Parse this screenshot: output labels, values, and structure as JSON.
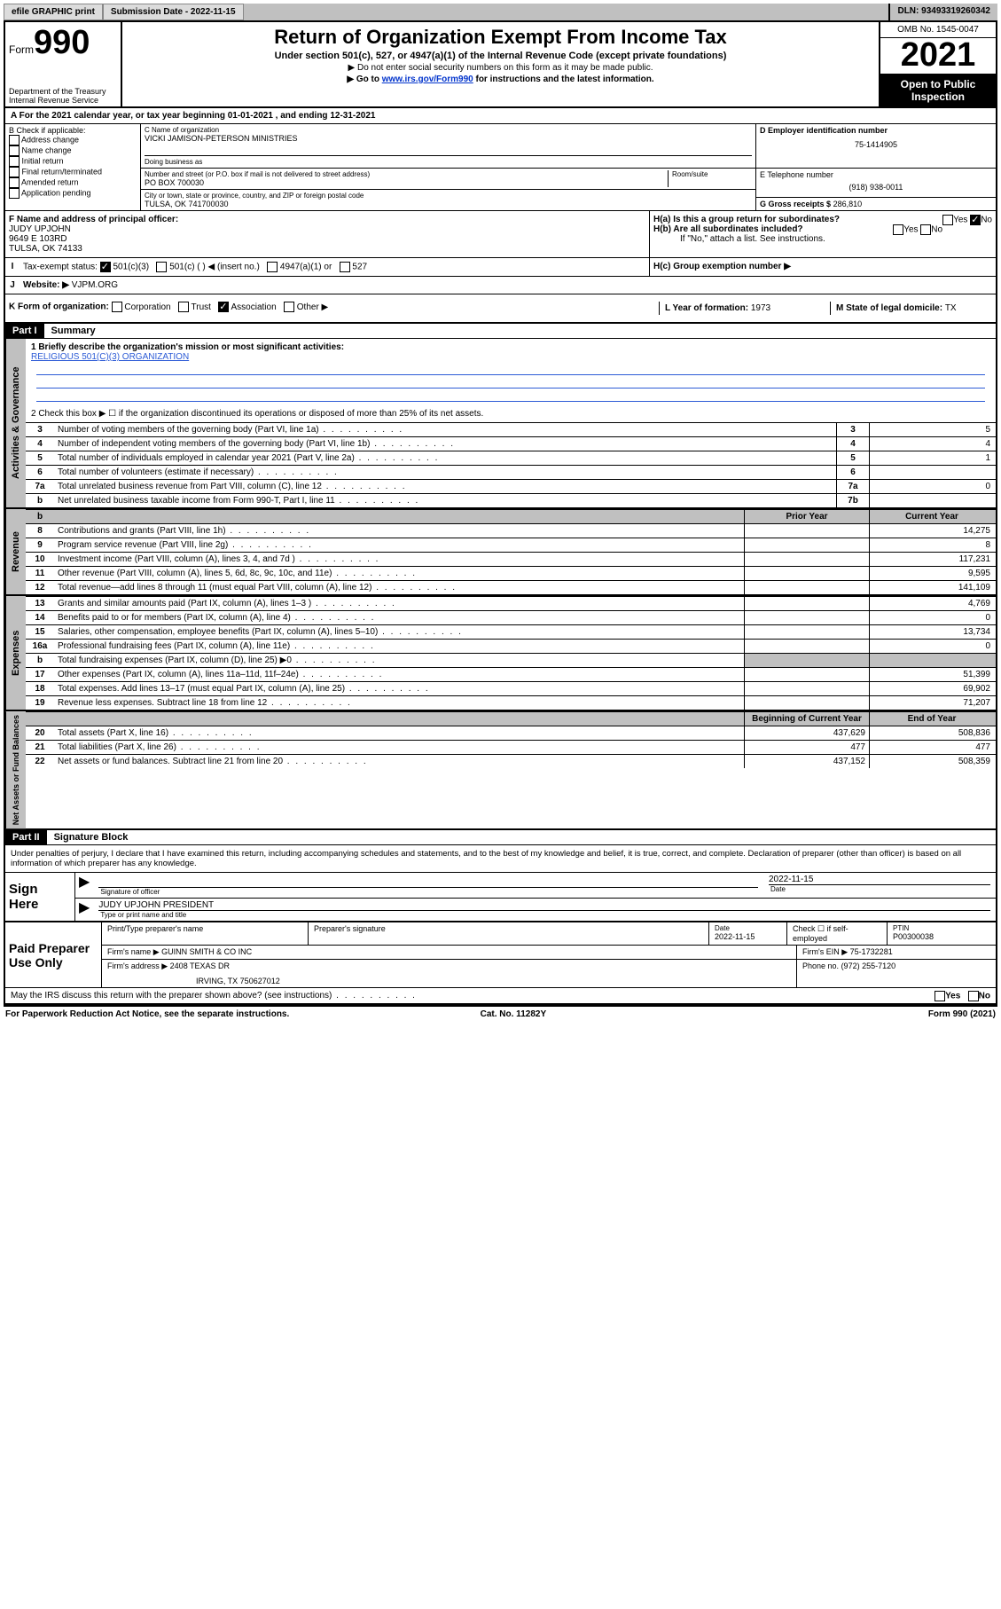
{
  "topbar": {
    "efile": "efile GRAPHIC print",
    "submission_label": "Submission Date - 2022-11-15",
    "dln": "DLN: 93493319260342"
  },
  "header": {
    "form_label": "Form",
    "form_number": "990",
    "dept": "Department of the Treasury\nInternal Revenue Service",
    "title": "Return of Organization Exempt From Income Tax",
    "subtitle": "Under section 501(c), 527, or 4947(a)(1) of the Internal Revenue Code (except private foundations)",
    "note1": "▶ Do not enter social security numbers on this form as it may be made public.",
    "note2_pre": "▶ Go to ",
    "note2_link": "www.irs.gov/Form990",
    "note2_post": " for instructions and the latest information.",
    "omb": "OMB No. 1545-0047",
    "year": "2021",
    "inspect": "Open to Public Inspection"
  },
  "rowA": "A For the 2021 calendar year, or tax year beginning 01-01-2021    , and ending 12-31-2021",
  "check_b": {
    "label": "B Check if applicable:",
    "items": [
      "Address change",
      "Name change",
      "Initial return",
      "Final return/terminated",
      "Amended return",
      "Application pending"
    ]
  },
  "org": {
    "c_label": "C Name of organization",
    "name": "VICKI JAMISON-PETERSON MINISTRIES",
    "dba_label": "Doing business as",
    "dba": "",
    "addr_label": "Number and street (or P.O. box if mail is not delivered to street address)",
    "room_label": "Room/suite",
    "addr": "PO BOX 700030",
    "city_label": "City or town, state or province, country, and ZIP or foreign postal code",
    "city": "TULSA, OK  741700030"
  },
  "col_d": {
    "d_label": "D Employer identification number",
    "ein": "75-1414905",
    "e_label": "E Telephone number",
    "phone": "(918) 938-0011",
    "g_label": "G Gross receipts $",
    "gross": "286,810"
  },
  "officer": {
    "f_label": "F Name and address of principal officer:",
    "name": "JUDY UPJOHN",
    "addr": "9649 E 103RD",
    "city": "TULSA, OK  74133"
  },
  "h": {
    "a_label": "H(a)  Is this a group return for subordinates?",
    "b_label": "H(b)  Are all subordinates included?",
    "yes": "Yes",
    "no": "No",
    "attach": "If \"No,\" attach a list. See instructions.",
    "c_label": "H(c)  Group exemption number ▶"
  },
  "rowI": {
    "label": "Tax-exempt status:",
    "opt1": "501(c)(3)",
    "opt2": "501(c) (  ) ◀ (insert no.)",
    "opt3": "4947(a)(1) or",
    "opt4": "527"
  },
  "rowJ": {
    "label": "Website: ▶",
    "value": "VJPM.ORG"
  },
  "rowK": {
    "label": "K Form of organization:",
    "opts": [
      "Corporation",
      "Trust",
      "Association",
      "Other ▶"
    ],
    "l_label": "L Year of formation: ",
    "l_val": "1973",
    "m_label": "M State of legal domicile: ",
    "m_val": "TX"
  },
  "part1": {
    "header": "Part I",
    "title": "Summary",
    "briefly_label": "1   Briefly describe the organization's mission or most significant activities:",
    "briefly": "RELIGIOUS 501(C)(3) ORGANIZATION",
    "line2": "2   Check this box ▶ ☐  if the organization discontinued its operations or disposed of more than 25% of its net assets."
  },
  "gov_rows": [
    {
      "n": "3",
      "label": "Number of voting members of the governing body (Part VI, line 1a)",
      "box": "3",
      "val": "5"
    },
    {
      "n": "4",
      "label": "Number of independent voting members of the governing body (Part VI, line 1b)",
      "box": "4",
      "val": "4"
    },
    {
      "n": "5",
      "label": "Total number of individuals employed in calendar year 2021 (Part V, line 2a)",
      "box": "5",
      "val": "1"
    },
    {
      "n": "6",
      "label": "Total number of volunteers (estimate if necessary)",
      "box": "6",
      "val": ""
    },
    {
      "n": "7a",
      "label": "Total unrelated business revenue from Part VIII, column (C), line 12",
      "box": "7a",
      "val": "0"
    },
    {
      "n": "b",
      "label": "Net unrelated business taxable income from Form 990-T, Part I, line 11",
      "box": "7b",
      "val": ""
    }
  ],
  "col_headers": {
    "prior": "Prior Year",
    "current": "Current Year"
  },
  "rev_rows": [
    {
      "n": "8",
      "label": "Contributions and grants (Part VIII, line 1h)",
      "prior": "",
      "cur": "14,275"
    },
    {
      "n": "9",
      "label": "Program service revenue (Part VIII, line 2g)",
      "prior": "",
      "cur": "8"
    },
    {
      "n": "10",
      "label": "Investment income (Part VIII, column (A), lines 3, 4, and 7d )",
      "prior": "",
      "cur": "117,231"
    },
    {
      "n": "11",
      "label": "Other revenue (Part VIII, column (A), lines 5, 6d, 8c, 9c, 10c, and 11e)",
      "prior": "",
      "cur": "9,595"
    },
    {
      "n": "12",
      "label": "Total revenue—add lines 8 through 11 (must equal Part VIII, column (A), line 12)",
      "prior": "",
      "cur": "141,109"
    }
  ],
  "exp_rows": [
    {
      "n": "13",
      "label": "Grants and similar amounts paid (Part IX, column (A), lines 1–3 )",
      "prior": "",
      "cur": "4,769"
    },
    {
      "n": "14",
      "label": "Benefits paid to or for members (Part IX, column (A), line 4)",
      "prior": "",
      "cur": "0"
    },
    {
      "n": "15",
      "label": "Salaries, other compensation, employee benefits (Part IX, column (A), lines 5–10)",
      "prior": "",
      "cur": "13,734"
    },
    {
      "n": "16a",
      "label": "Professional fundraising fees (Part IX, column (A), line 11e)",
      "prior": "",
      "cur": "0"
    },
    {
      "n": "b",
      "label": "Total fundraising expenses (Part IX, column (D), line 25) ▶0",
      "prior": "shaded",
      "cur": "shaded"
    },
    {
      "n": "17",
      "label": "Other expenses (Part IX, column (A), lines 11a–11d, 11f–24e)",
      "prior": "",
      "cur": "51,399"
    },
    {
      "n": "18",
      "label": "Total expenses. Add lines 13–17 (must equal Part IX, column (A), line 25)",
      "prior": "",
      "cur": "69,902"
    },
    {
      "n": "19",
      "label": "Revenue less expenses. Subtract line 18 from line 12",
      "prior": "",
      "cur": "71,207"
    }
  ],
  "na_headers": {
    "beg": "Beginning of Current Year",
    "end": "End of Year"
  },
  "na_rows": [
    {
      "n": "20",
      "label": "Total assets (Part X, line 16)",
      "prior": "437,629",
      "cur": "508,836"
    },
    {
      "n": "21",
      "label": "Total liabilities (Part X, line 26)",
      "prior": "477",
      "cur": "477"
    },
    {
      "n": "22",
      "label": "Net assets or fund balances. Subtract line 21 from line 20",
      "prior": "437,152",
      "cur": "508,359"
    }
  ],
  "part2": {
    "header": "Part II",
    "title": "Signature Block",
    "decl": "Under penalties of perjury, I declare that I have examined this return, including accompanying schedules and statements, and to the best of my knowledge and belief, it is true, correct, and complete. Declaration of preparer (other than officer) is based on all information of which preparer has any knowledge."
  },
  "sign": {
    "here": "Sign Here",
    "sig_officer": "Signature of officer",
    "date_label": "Date",
    "date": "2022-11-15",
    "name_title": "JUDY UPJOHN PRESIDENT",
    "type_print": "Type or print name and title"
  },
  "paid": {
    "label": "Paid Preparer Use Only",
    "print_name": "Print/Type preparer's name",
    "prep_sig": "Preparer's signature",
    "date_label": "Date",
    "date": "2022-11-15",
    "check_self": "Check ☐ if self-employed",
    "ptin_label": "PTIN",
    "ptin": "P00300038",
    "firm_name_label": "Firm's name     ▶",
    "firm_name": "GUINN SMITH & CO INC",
    "firm_ein_label": "Firm's EIN ▶",
    "firm_ein": "75-1732281",
    "firm_addr_label": "Firm's address ▶",
    "firm_addr": "2408 TEXAS DR",
    "firm_city": "IRVING, TX  750627012",
    "phone_label": "Phone no.",
    "phone": "(972) 255-7120"
  },
  "may_discuss": "May the IRS discuss this return with the preparer shown above? (see instructions)",
  "footer": {
    "left": "For Paperwork Reduction Act Notice, see the separate instructions.",
    "mid": "Cat. No. 11282Y",
    "right": "Form 990 (2021)"
  },
  "side_labels": {
    "gov": "Activities & Governance",
    "rev": "Revenue",
    "exp": "Expenses",
    "na": "Net Assets or Fund Balances"
  }
}
